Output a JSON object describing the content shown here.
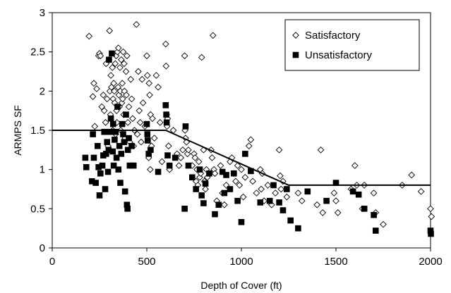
{
  "chart_data": {
    "type": "scatter",
    "xlabel": "Depth of Cover (ft)",
    "ylabel": "ARMPS SF",
    "xlim": [
      0,
      2000
    ],
    "ylim": [
      0,
      3
    ],
    "x_ticks": [
      "0",
      "500",
      "1000",
      "1500",
      "2000"
    ],
    "y_ticks": [
      "0",
      "0.5",
      "1",
      "1.5",
      "2",
      "2.5",
      "3"
    ],
    "grid": false,
    "legend_position": "top-right",
    "series": [
      {
        "name": "Satisfactory",
        "marker": "diamond-open",
        "color": "#000000",
        "points": [
          [
            195,
            2.7
          ],
          [
            215,
            1.93
          ],
          [
            220,
            2.1
          ],
          [
            225,
            1.55
          ],
          [
            235,
            2.03
          ],
          [
            245,
            2.45
          ],
          [
            250,
            2.48
          ],
          [
            255,
            2.45
          ],
          [
            262,
            1.8
          ],
          [
            270,
            1.95
          ],
          [
            275,
            1.75
          ],
          [
            282,
            1.6
          ],
          [
            285,
            2.35
          ],
          [
            290,
            1.9
          ],
          [
            295,
            1.3
          ],
          [
            300,
            2.4
          ],
          [
            303,
            2.77
          ],
          [
            305,
            2.0
          ],
          [
            308,
            1.7
          ],
          [
            310,
            2.2
          ],
          [
            313,
            2.05
          ],
          [
            318,
            2.3
          ],
          [
            320,
            1.5
          ],
          [
            322,
            1.9
          ],
          [
            325,
            2.1
          ],
          [
            328,
            2.0
          ],
          [
            330,
            1.85
          ],
          [
            333,
            2.35
          ],
          [
            335,
            1.45
          ],
          [
            338,
            2.45
          ],
          [
            340,
            1.75
          ],
          [
            342,
            1.6
          ],
          [
            345,
            2.5
          ],
          [
            348,
            2.05
          ],
          [
            350,
            2.55
          ],
          [
            352,
            1.95
          ],
          [
            355,
            1.8
          ],
          [
            358,
            2.3
          ],
          [
            360,
            2.0
          ],
          [
            362,
            1.5
          ],
          [
            365,
            2.4
          ],
          [
            368,
            1.85
          ],
          [
            370,
            2.1
          ],
          [
            372,
            1.9
          ],
          [
            375,
            2.5
          ],
          [
            378,
            1.7
          ],
          [
            380,
            2.35
          ],
          [
            382,
            2.0
          ],
          [
            385,
            1.4
          ],
          [
            390,
            2.25
          ],
          [
            392,
            1.95
          ],
          [
            395,
            2.45
          ],
          [
            400,
            1.6
          ],
          [
            405,
            1.8
          ],
          [
            410,
            1.35
          ],
          [
            415,
            2.15
          ],
          [
            420,
            1.9
          ],
          [
            425,
            1.65
          ],
          [
            430,
            1.3
          ],
          [
            435,
            1.5
          ],
          [
            445,
            2.85
          ],
          [
            450,
            1.45
          ],
          [
            455,
            2.25
          ],
          [
            460,
            1.75
          ],
          [
            465,
            1.6
          ],
          [
            470,
            1.35
          ],
          [
            475,
            2.15
          ],
          [
            480,
            1.85
          ],
          [
            490,
            1.55
          ],
          [
            500,
            2.45
          ],
          [
            503,
            2.2
          ],
          [
            510,
            1.15
          ],
          [
            512,
            2.1
          ],
          [
            515,
            1.95
          ],
          [
            518,
            1.0
          ],
          [
            520,
            1.7
          ],
          [
            525,
            1.3
          ],
          [
            530,
            1.65
          ],
          [
            540,
            1.4
          ],
          [
            550,
            2.2
          ],
          [
            560,
            2.05
          ],
          [
            570,
            1.6
          ],
          [
            580,
            1.1
          ],
          [
            600,
            2.6
          ],
          [
            602,
            2.32
          ],
          [
            605,
            1.7
          ],
          [
            607,
            1.55
          ],
          [
            610,
            1.65
          ],
          [
            615,
            1.3
          ],
          [
            620,
            1.0
          ],
          [
            640,
            1.5
          ],
          [
            660,
            1.2
          ],
          [
            670,
            1.05
          ],
          [
            680,
            1.15
          ],
          [
            690,
            1.25
          ],
          [
            700,
            2.45
          ],
          [
            702,
            1.5
          ],
          [
            705,
            1.4
          ],
          [
            710,
            1.35
          ],
          [
            715,
            1.2
          ],
          [
            720,
            1.25
          ],
          [
            740,
            1.05
          ],
          [
            750,
            1.2
          ],
          [
            755,
            1.15
          ],
          [
            760,
            0.85
          ],
          [
            765,
            1.0
          ],
          [
            770,
            0.8
          ],
          [
            775,
            1.1
          ],
          [
            780,
            0.9
          ],
          [
            785,
            0.95
          ],
          [
            790,
            2.43
          ],
          [
            800,
            1.25
          ],
          [
            805,
            0.85
          ],
          [
            810,
            0.75
          ],
          [
            815,
            1.0
          ],
          [
            820,
            0.9
          ],
          [
            840,
            1.25
          ],
          [
            845,
            1.15
          ],
          [
            850,
            2.71
          ],
          [
            855,
            1.0
          ],
          [
            860,
            0.95
          ],
          [
            870,
            0.6
          ],
          [
            890,
            1.05
          ],
          [
            900,
            0.7
          ],
          [
            910,
            0.55
          ],
          [
            920,
            0.8
          ],
          [
            940,
            1.1
          ],
          [
            950,
            1.15
          ],
          [
            960,
            0.95
          ],
          [
            970,
            0.85
          ],
          [
            980,
            1.05
          ],
          [
            990,
            0.8
          ],
          [
            1000,
            1.0
          ],
          [
            1010,
            0.65
          ],
          [
            1020,
            0.9
          ],
          [
            1040,
            1.3
          ],
          [
            1050,
            1.38
          ],
          [
            1060,
            0.85
          ],
          [
            1080,
            0.7
          ],
          [
            1100,
            1.0
          ],
          [
            1105,
            0.75
          ],
          [
            1110,
            0.95
          ],
          [
            1120,
            0.6
          ],
          [
            1140,
            0.8
          ],
          [
            1160,
            0.55
          ],
          [
            1180,
            0.7
          ],
          [
            1200,
            1.25
          ],
          [
            1205,
            0.92
          ],
          [
            1210,
            0.75
          ],
          [
            1220,
            0.85
          ],
          [
            1240,
            0.65
          ],
          [
            1300,
            0.7
          ],
          [
            1320,
            0.6
          ],
          [
            1400,
            0.55
          ],
          [
            1420,
            1.25
          ],
          [
            1430,
            0.45
          ],
          [
            1490,
            0.7
          ],
          [
            1500,
            0.6
          ],
          [
            1510,
            0.45
          ],
          [
            1580,
            0.75
          ],
          [
            1600,
            1.05
          ],
          [
            1610,
            0.8
          ],
          [
            1640,
            0.5
          ],
          [
            1650,
            0.8
          ],
          [
            1700,
            0.7
          ],
          [
            1710,
            0.45
          ],
          [
            1750,
            0.3
          ],
          [
            1850,
            0.8
          ],
          [
            1900,
            0.93
          ],
          [
            1950,
            0.72
          ],
          [
            2000,
            0.5
          ],
          [
            2005,
            0.4
          ]
        ]
      },
      {
        "name": "Unsatisfactory",
        "marker": "square-filled",
        "color": "#000000",
        "points": [
          [
            175,
            1.15
          ],
          [
            180,
            1.03
          ],
          [
            210,
            0.85
          ],
          [
            215,
            1.45
          ],
          [
            220,
            1.15
          ],
          [
            230,
            0.83
          ],
          [
            240,
            1.3
          ],
          [
            245,
            1.03
          ],
          [
            250,
            0.67
          ],
          [
            255,
            0.95
          ],
          [
            265,
            1.05
          ],
          [
            270,
            1.18
          ],
          [
            275,
            1.48
          ],
          [
            280,
            0.75
          ],
          [
            285,
            1.2
          ],
          [
            290,
            1.35
          ],
          [
            295,
            0.97
          ],
          [
            298,
            1.25
          ],
          [
            300,
            2.4
          ],
          [
            305,
            1.48
          ],
          [
            310,
            1.65
          ],
          [
            315,
            2.48
          ],
          [
            320,
            1.23
          ],
          [
            322,
            1.58
          ],
          [
            325,
            1.05
          ],
          [
            330,
            1.38
          ],
          [
            335,
            1.48
          ],
          [
            340,
            1.15
          ],
          [
            345,
            1.8
          ],
          [
            350,
            1.0
          ],
          [
            355,
            1.3
          ],
          [
            360,
            0.83
          ],
          [
            365,
            1.2
          ],
          [
            370,
            1.58
          ],
          [
            375,
            1.45
          ],
          [
            380,
            1.35
          ],
          [
            385,
            0.72
          ],
          [
            390,
            1.7
          ],
          [
            395,
            0.55
          ],
          [
            398,
            0.5
          ],
          [
            400,
            1.25
          ],
          [
            405,
            1.4
          ],
          [
            410,
            1.05
          ],
          [
            420,
            1.3
          ],
          [
            430,
            1.05
          ],
          [
            500,
            1.58
          ],
          [
            503,
            1.45
          ],
          [
            505,
            1.37
          ],
          [
            510,
            1.2
          ],
          [
            520,
            1.25
          ],
          [
            560,
            0.97
          ],
          [
            600,
            1.82
          ],
          [
            603,
            1.7
          ],
          [
            605,
            1.6
          ],
          [
            610,
            1.18
          ],
          [
            620,
            1.05
          ],
          [
            650,
            1.15
          ],
          [
            700,
            0.5
          ],
          [
            705,
            1.55
          ],
          [
            720,
            1.05
          ],
          [
            740,
            0.9
          ],
          [
            760,
            0.75
          ],
          [
            780,
            1.0
          ],
          [
            790,
            0.67
          ],
          [
            800,
            0.57
          ],
          [
            810,
            0.82
          ],
          [
            830,
            0.95
          ],
          [
            860,
            0.43
          ],
          [
            880,
            0.55
          ],
          [
            900,
            0.97
          ],
          [
            910,
            0.7
          ],
          [
            920,
            0.93
          ],
          [
            940,
            0.75
          ],
          [
            960,
            0.95
          ],
          [
            980,
            0.6
          ],
          [
            1000,
            0.33
          ],
          [
            1020,
            1.2
          ],
          [
            1050,
            0.98
          ],
          [
            1100,
            0.58
          ],
          [
            1150,
            0.6
          ],
          [
            1170,
            0.8
          ],
          [
            1200,
            0.58
          ],
          [
            1220,
            0.48
          ],
          [
            1240,
            0.75
          ],
          [
            1260,
            0.35
          ],
          [
            1300,
            0.25
          ],
          [
            1350,
            0.72
          ],
          [
            1450,
            0.6
          ],
          [
            1500,
            0.83
          ],
          [
            1590,
            0.72
          ],
          [
            1620,
            0.68
          ],
          [
            1650,
            0.5
          ],
          [
            1700,
            0.42
          ],
          [
            1710,
            0.22
          ],
          [
            2000,
            0.22
          ],
          [
            2002,
            0.18
          ]
        ]
      }
    ],
    "trend_line": [
      [
        0,
        1.5
      ],
      [
        600,
        1.5
      ],
      [
        1250,
        0.8
      ],
      [
        2000,
        0.8
      ]
    ]
  }
}
